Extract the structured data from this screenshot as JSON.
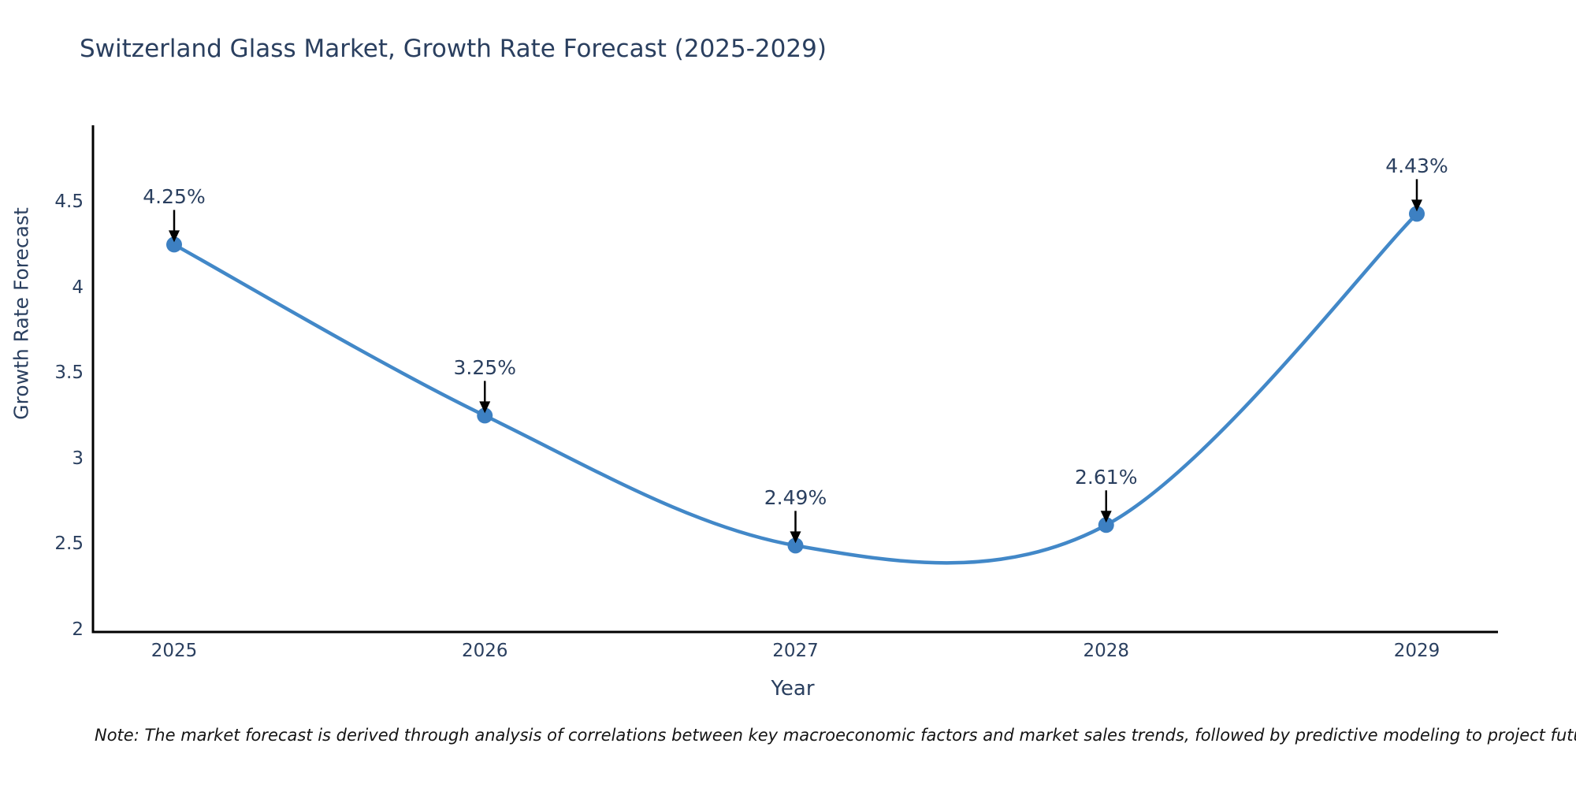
{
  "title": "Switzerland Glass Market, Growth Rate Forecast (2025-2029)",
  "footnote": "Note: The market forecast is derived through analysis of correlations between key macroeconomic factors and market sales trends, followed by predictive modeling to project future sales",
  "chart_data": {
    "type": "line",
    "title": "Switzerland Glass Market, Growth Rate Forecast (2025-2029)",
    "xlabel": "Year",
    "ylabel": "Growth Rate Forecast",
    "categories": [
      "2025",
      "2026",
      "2027",
      "2028",
      "2029"
    ],
    "series": [
      {
        "name": "Growth Rate Forecast",
        "values": [
          4.25,
          3.25,
          2.49,
          2.61,
          4.43
        ],
        "labels": [
          "4.25%",
          "3.25%",
          "2.49%",
          "2.61%",
          "4.43%"
        ]
      }
    ],
    "yticks": [
      2,
      2.5,
      3,
      3.5,
      4,
      4.5
    ],
    "ytick_labels": [
      "2",
      "2.5",
      "3",
      "3.5",
      "4",
      "4.5"
    ],
    "ylim": [
      1.98,
      4.95
    ],
    "line_shape": "spline",
    "grid": false,
    "legend": "none",
    "colors": {
      "line": "#4288c8",
      "marker": "#3d80c2",
      "axis": "#000000",
      "text": "#2a3f5f",
      "arrow": "#000000",
      "note": "#141414"
    }
  }
}
